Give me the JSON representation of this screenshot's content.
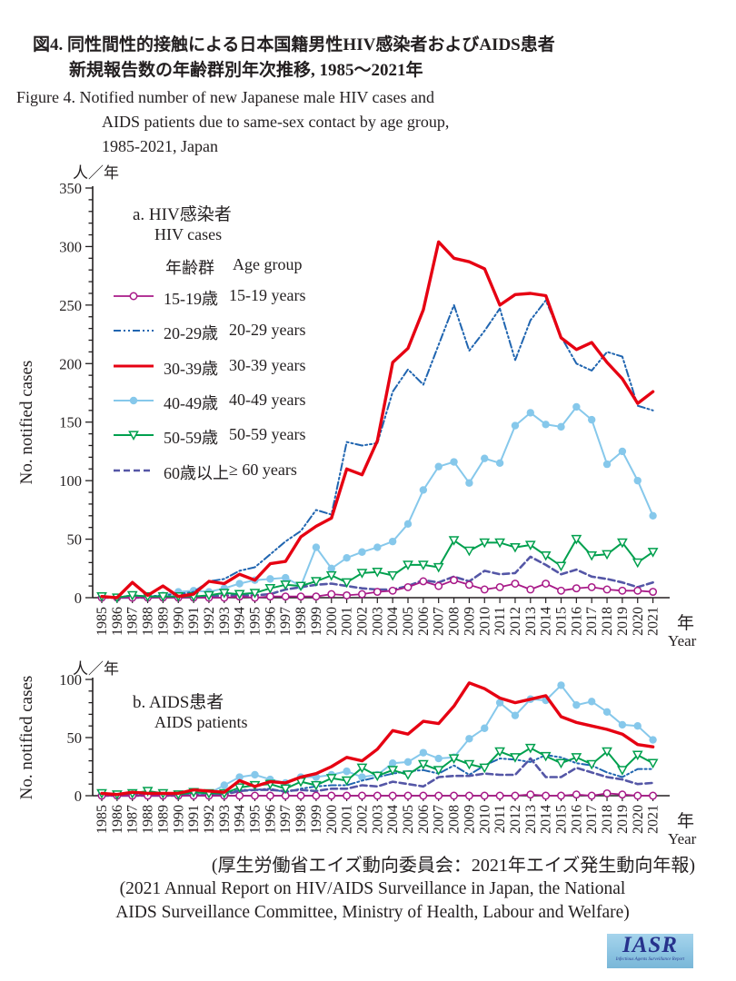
{
  "title": {
    "jp_line1": "図4. 同性間性的接触による日本国籍男性HIV感染者およびAIDS患者",
    "jp_line2": "新規報告数の年齢群別年次推移, 1985〜2021年",
    "en_line1": "Figure 4. Notified number of new Japanese male HIV cases and",
    "en_line2": "AIDS patients due to same-sex contact by age group,",
    "en_line3": "1985-2021, Japan"
  },
  "axes": {
    "unit_label": "人／年",
    "y_label": "No. notified cases",
    "x_label_jp": "年",
    "x_label_en": "Year"
  },
  "legend": {
    "header_jp": "年齢群",
    "header_en": "Age group",
    "items": [
      {
        "jp": "15-19歳",
        "en": "15-19 years"
      },
      {
        "jp": "20-29歳",
        "en": "20-29 years"
      },
      {
        "jp": "30-39歳",
        "en": "30-39 years"
      },
      {
        "jp": "40-49歳",
        "en": "40-49 years"
      },
      {
        "jp": "50-59歳",
        "en": "50-59 years"
      },
      {
        "jp": "60歳以上",
        "en": "≥ 60 years"
      }
    ]
  },
  "panel_a": {
    "title_jp": "a. HIV感染者",
    "title_en": "HIV cases"
  },
  "panel_b": {
    "title_jp": "b. AIDS患者",
    "title_en": "AIDS patients"
  },
  "source": {
    "jp": "(厚生労働省エイズ動向委員会：2021年エイズ発生動向年報)",
    "en_line1": "(2021 Annual Report on HIV/AIDS Surveillance in Japan, the National",
    "en_line2": "AIDS Surveillance Committee, Ministry of Health, Labour and Welfare)"
  },
  "logo": {
    "text": "IASR",
    "subtext": "Infectious Agents Surveillance Report"
  },
  "chart_data": [
    {
      "type": "line",
      "panel": "a",
      "title": "a. HIV感染者 / HIV cases",
      "ylabel": "No. notified cases",
      "xlabel": "年 Year",
      "ylim": [
        0,
        350
      ],
      "ytick_step": 50,
      "yminor_step": 10,
      "legend_position": "upper-left-inside",
      "grid": false,
      "x": [
        1985,
        1986,
        1987,
        1988,
        1989,
        1990,
        1991,
        1992,
        1993,
        1994,
        1995,
        1996,
        1997,
        1998,
        1999,
        2000,
        2001,
        2002,
        2003,
        2004,
        2005,
        2006,
        2007,
        2008,
        2009,
        2010,
        2011,
        2012,
        2013,
        2014,
        2015,
        2016,
        2017,
        2018,
        2019,
        2020,
        2021
      ],
      "series": [
        {
          "name": "15-19 years",
          "name_jp": "15-19歳",
          "color": "#a81a88",
          "line": "solid",
          "marker": "open-circle",
          "width": 1.8,
          "values": [
            0,
            0,
            0,
            0,
            0,
            0,
            0,
            0,
            0,
            1,
            0,
            1,
            1,
            1,
            1,
            3,
            2,
            3,
            5,
            6,
            9,
            14,
            10,
            15,
            11,
            7,
            9,
            12,
            7,
            12,
            6,
            8,
            9,
            7,
            6,
            6,
            5
          ]
        },
        {
          "name": "20-29 years",
          "name_jp": "20-29歳",
          "color": "#2065b0",
          "line": "dashdot",
          "marker": "none",
          "width": 2,
          "values": [
            0,
            0,
            2,
            1,
            2,
            3,
            5,
            14,
            16,
            23,
            26,
            37,
            48,
            57,
            75,
            71,
            133,
            130,
            132,
            176,
            195,
            182,
            216,
            250,
            211,
            228,
            247,
            203,
            237,
            254,
            223,
            200,
            194,
            210,
            206,
            164,
            160
          ]
        },
        {
          "name": "30-39 years",
          "name_jp": "30-39歳",
          "color": "#e60012",
          "line": "solid",
          "marker": "none",
          "width": 3.4,
          "values": [
            1,
            0,
            13,
            2,
            10,
            1,
            3,
            14,
            12,
            20,
            15,
            29,
            31,
            52,
            61,
            68,
            110,
            105,
            134,
            201,
            213,
            246,
            304,
            290,
            287,
            281,
            250,
            259,
            260,
            258,
            222,
            212,
            218,
            201,
            187,
            166,
            176
          ]
        },
        {
          "name": "40-49 years",
          "name_jp": "40-49歳",
          "color": "#86c8eb",
          "line": "solid",
          "marker": "filled-circle",
          "width": 2,
          "values": [
            0,
            0,
            1,
            1,
            2,
            5,
            6,
            5,
            8,
            12,
            15,
            16,
            17,
            10,
            43,
            25,
            34,
            39,
            43,
            48,
            63,
            92,
            112,
            116,
            98,
            119,
            115,
            147,
            158,
            148,
            146,
            163,
            152,
            114,
            125,
            100,
            70
          ]
        },
        {
          "name": "50-59 years",
          "name_jp": "50-59歳",
          "color": "#00a04e",
          "line": "solid",
          "marker": "open-triangle-down",
          "width": 2,
          "values": [
            1,
            0,
            2,
            1,
            1,
            1,
            1,
            2,
            4,
            3,
            4,
            8,
            11,
            10,
            14,
            19,
            13,
            21,
            22,
            19,
            28,
            28,
            26,
            49,
            40,
            47,
            47,
            43,
            45,
            36,
            27,
            50,
            36,
            37,
            47,
            30,
            39
          ]
        },
        {
          "name": "≥ 60 years",
          "name_jp": "60歳以上",
          "color": "#5456a6",
          "line": "dashed",
          "marker": "none",
          "width": 2.6,
          "values": [
            0,
            0,
            0,
            0,
            1,
            0,
            1,
            1,
            2,
            2,
            2,
            3,
            7,
            9,
            11,
            12,
            10,
            8,
            7,
            7,
            10,
            15,
            13,
            18,
            14,
            23,
            20,
            21,
            35,
            28,
            20,
            24,
            18,
            16,
            13,
            9,
            13
          ]
        }
      ]
    },
    {
      "type": "line",
      "panel": "b",
      "title": "b. AIDS患者 / AIDS patients",
      "ylabel": "No. notified cases",
      "xlabel": "年 Year",
      "ylim": [
        0,
        100
      ],
      "ytick_step": 50,
      "yminor_step": 10,
      "grid": false,
      "x": [
        1985,
        1986,
        1987,
        1988,
        1989,
        1990,
        1991,
        1992,
        1993,
        1994,
        1995,
        1996,
        1997,
        1998,
        1999,
        2000,
        2001,
        2002,
        2003,
        2004,
        2005,
        2006,
        2007,
        2008,
        2009,
        2010,
        2011,
        2012,
        2013,
        2014,
        2015,
        2016,
        2017,
        2018,
        2019,
        2020,
        2021
      ],
      "series": [
        {
          "name": "15-19 years",
          "name_jp": "15-19歳",
          "color": "#a81a88",
          "line": "solid",
          "marker": "open-circle",
          "width": 1.8,
          "values": [
            0,
            0,
            0,
            0,
            0,
            0,
            0,
            0,
            0,
            0,
            0,
            0,
            0,
            0,
            0,
            0,
            0,
            0,
            0,
            0,
            0,
            0,
            0,
            0,
            0,
            0,
            0,
            0,
            1,
            0,
            0,
            1,
            0,
            2,
            1,
            0,
            0
          ]
        },
        {
          "name": "20-29 years",
          "name_jp": "20-29歳",
          "color": "#2065b0",
          "line": "dashdot",
          "marker": "none",
          "width": 2,
          "values": [
            1,
            0,
            1,
            0,
            0,
            1,
            0,
            1,
            1,
            5,
            5,
            6,
            3,
            6,
            8,
            9,
            9,
            13,
            16,
            19,
            21,
            22,
            19,
            26,
            18,
            26,
            32,
            31,
            29,
            35,
            33,
            28,
            26,
            20,
            16,
            23,
            23
          ]
        },
        {
          "name": "30-39 years",
          "name_jp": "30-39歳",
          "color": "#e60012",
          "line": "solid",
          "marker": "none",
          "width": 3.4,
          "values": [
            2,
            1,
            3,
            2,
            2,
            2,
            5,
            4,
            3,
            13,
            8,
            12,
            11,
            16,
            19,
            25,
            33,
            30,
            40,
            56,
            53,
            64,
            62,
            77,
            97,
            92,
            84,
            80,
            83,
            86,
            68,
            63,
            60,
            57,
            53,
            44,
            42
          ]
        },
        {
          "name": "40-49 years",
          "name_jp": "40-49歳",
          "color": "#86c8eb",
          "line": "solid",
          "marker": "filled-circle",
          "width": 2,
          "values": [
            1,
            1,
            2,
            1,
            1,
            1,
            2,
            2,
            9,
            16,
            18,
            14,
            11,
            16,
            16,
            18,
            21,
            16,
            18,
            28,
            29,
            37,
            32,
            33,
            49,
            58,
            80,
            69,
            83,
            82,
            95,
            78,
            81,
            72,
            61,
            60,
            48
          ]
        },
        {
          "name": "50-59 years",
          "name_jp": "50-59歳",
          "color": "#00a04e",
          "line": "solid",
          "marker": "open-triangle-down",
          "width": 2,
          "values": [
            2,
            1,
            2,
            4,
            2,
            1,
            3,
            2,
            2,
            7,
            9,
            10,
            6,
            12,
            9,
            15,
            13,
            24,
            17,
            22,
            18,
            27,
            22,
            32,
            27,
            24,
            38,
            33,
            41,
            34,
            28,
            33,
            27,
            38,
            22,
            35,
            28
          ]
        },
        {
          "name": "≥ 60 years",
          "name_jp": "60歳以上",
          "color": "#5456a6",
          "line": "dashed",
          "marker": "none",
          "width": 2.6,
          "values": [
            0,
            0,
            0,
            0,
            0,
            0,
            1,
            0,
            1,
            4,
            5,
            5,
            4,
            5,
            4,
            6,
            6,
            9,
            8,
            12,
            10,
            8,
            16,
            17,
            17,
            19,
            18,
            18,
            32,
            16,
            16,
            24,
            20,
            16,
            14,
            10,
            11
          ]
        }
      ]
    }
  ]
}
